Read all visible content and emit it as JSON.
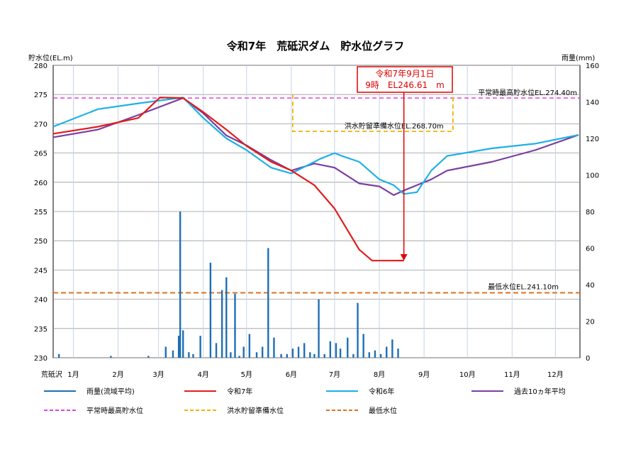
{
  "page": {
    "location_label": "荒砥沢"
  },
  "chart_data": {
    "type": "line",
    "title": "令和7年　荒砥沢ダム　貯水位グラフ",
    "ylabel_left": "貯水位(EL.m)",
    "ylabel_right": "雨量(mm)",
    "ylim_left": [
      230,
      280
    ],
    "ylim_right": [
      0,
      160
    ],
    "yticks_left": [
      "230",
      "235",
      "240",
      "245",
      "250",
      "255",
      "260",
      "265",
      "270",
      "275",
      "280"
    ],
    "yticks_right": [
      "0",
      "20",
      "40",
      "60",
      "80",
      "100",
      "120",
      "140",
      "160"
    ],
    "months": [
      "1月",
      "2月",
      "3月",
      "4月",
      "5月",
      "6月",
      "7月",
      "8月",
      "9月",
      "10月",
      "11月",
      "12月"
    ],
    "grid": true,
    "colors": {
      "rain": "#1f6fb4",
      "r7": "#e11d1d",
      "r6": "#1fb0e6",
      "avg": "#7b3fa0",
      "max_normal": "#e040e0",
      "flood_prep": "#f0b400",
      "min_level": "#e07020"
    },
    "reference_lines": [
      {
        "name": "平常時最高貯水位",
        "label": "平常時最高貯水位EL.274.40m",
        "value": 274.4
      },
      {
        "name": "洪水貯留準備水位",
        "label": "洪水貯留準備水位EL.268.70m",
        "value": 268.7,
        "period": [
          "2025-06-16",
          "2025-10-05"
        ]
      },
      {
        "name": "最低水位",
        "label": "最低水位EL.241.10m",
        "value": 241.1
      }
    ],
    "annotation": {
      "line1": "令和7年9月1日",
      "line2": "9時　EL246.61　m",
      "date": "2025-09-01",
      "value": 246.61
    },
    "series": [
      {
        "name": "令和7年",
        "x": [
          "2025-01-01",
          "2025-02-01",
          "2025-03-01",
          "2025-03-16",
          "2025-04-01",
          "2025-04-15",
          "2025-05-01",
          "2025-05-15",
          "2025-06-01",
          "2025-06-15",
          "2025-07-01",
          "2025-07-15",
          "2025-08-01",
          "2025-08-10",
          "2025-08-20",
          "2025-09-01"
        ],
        "y": [
          268.3,
          269.5,
          271.0,
          274.5,
          274.4,
          272.0,
          269.0,
          266.2,
          263.5,
          262.0,
          259.5,
          255.5,
          248.5,
          246.6,
          246.6,
          246.61
        ]
      },
      {
        "name": "令和6年",
        "x": [
          "2025-01-01",
          "2025-02-01",
          "2025-03-01",
          "2025-04-01",
          "2025-04-15",
          "2025-05-01",
          "2025-05-15",
          "2025-06-01",
          "2025-06-15",
          "2025-07-01",
          "2025-07-05",
          "2025-07-15",
          "2025-07-20",
          "2025-08-01",
          "2025-08-15",
          "2025-08-25",
          "2025-09-01",
          "2025-09-10",
          "2025-09-20",
          "2025-10-01",
          "2025-11-01",
          "2025-12-01",
          "2025-12-31"
        ],
        "y": [
          269.5,
          272.5,
          273.5,
          274.5,
          271.0,
          267.5,
          265.5,
          262.5,
          261.5,
          263.5,
          264.0,
          265.0,
          264.5,
          263.5,
          260.5,
          259.5,
          258.0,
          258.3,
          262.0,
          264.5,
          265.8,
          266.6,
          268.1
        ]
      },
      {
        "name": "過去10ヵ年平均",
        "x": [
          "2025-01-01",
          "2025-02-01",
          "2025-03-01",
          "2025-04-01",
          "2025-04-15",
          "2025-05-01",
          "2025-05-15",
          "2025-06-01",
          "2025-06-15",
          "2025-07-01",
          "2025-07-15",
          "2025-08-01",
          "2025-08-15",
          "2025-08-25",
          "2025-09-01",
          "2025-09-10",
          "2025-09-20",
          "2025-10-01",
          "2025-11-01",
          "2025-12-01",
          "2025-12-31"
        ],
        "y": [
          267.7,
          269.0,
          271.5,
          274.4,
          271.8,
          268.0,
          266.3,
          263.8,
          262.0,
          263.2,
          262.5,
          259.8,
          259.3,
          257.8,
          258.6,
          259.5,
          260.5,
          262.0,
          263.5,
          265.5,
          268.1
        ]
      }
    ],
    "rain": {
      "name": "雨量(流域平均)",
      "x": [
        "2025-01-05",
        "2025-02-10",
        "2025-03-08",
        "2025-03-20",
        "2025-03-25",
        "2025-03-29",
        "2025-03-30",
        "2025-04-01",
        "2025-04-05",
        "2025-04-08",
        "2025-04-13",
        "2025-04-20",
        "2025-04-24",
        "2025-04-28",
        "2025-05-01",
        "2025-05-04",
        "2025-05-07",
        "2025-05-10",
        "2025-05-13",
        "2025-05-17",
        "2025-05-22",
        "2025-05-26",
        "2025-05-30",
        "2025-06-03",
        "2025-06-08",
        "2025-06-12",
        "2025-06-16",
        "2025-06-20",
        "2025-06-24",
        "2025-06-28",
        "2025-07-01",
        "2025-07-04",
        "2025-07-08",
        "2025-07-12",
        "2025-07-16",
        "2025-07-19",
        "2025-07-24",
        "2025-07-28",
        "2025-07-31",
        "2025-08-04",
        "2025-08-08",
        "2025-08-12",
        "2025-08-16",
        "2025-08-20",
        "2025-08-24",
        "2025-08-28"
      ],
      "values": [
        2,
        1,
        1,
        6,
        4,
        12,
        80,
        15,
        3,
        2,
        12,
        52,
        8,
        37,
        44,
        3,
        35,
        1,
        6,
        13,
        3,
        6,
        60,
        11,
        2,
        2,
        5,
        6,
        8,
        3,
        2,
        32,
        2,
        9,
        8,
        5,
        11,
        2,
        30,
        13,
        3,
        4,
        2,
        6,
        10,
        5
      ]
    }
  },
  "legend": [
    {
      "label": "雨量(流域平均)",
      "style": "solid",
      "color": "#1f6fb4"
    },
    {
      "label": "令和7年",
      "style": "solid",
      "color": "#e11d1d"
    },
    {
      "label": "令和6年",
      "style": "solid",
      "color": "#1fb0e6"
    },
    {
      "label": "過去10ヵ年平均",
      "style": "solid",
      "color": "#7b3fa0"
    },
    {
      "label": "平常時最高貯水位",
      "style": "dashed",
      "color": "#e040e0"
    },
    {
      "label": "洪水貯留準備水位",
      "style": "dashed",
      "color": "#f0b400"
    },
    {
      "label": "最低水位",
      "style": "dashed",
      "color": "#e07020"
    }
  ]
}
